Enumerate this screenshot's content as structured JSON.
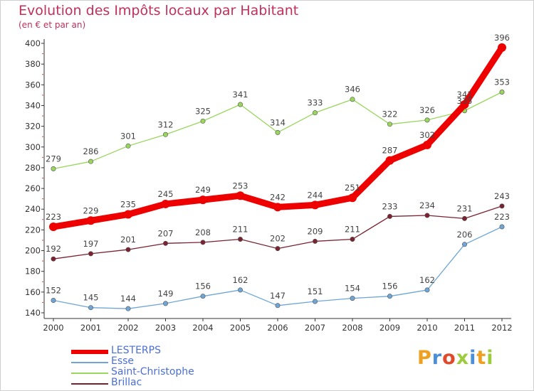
{
  "title": "Evolution des Impôts locaux par Habitant",
  "subtitle": "(en € et par an)",
  "logo": [
    "P",
    "r",
    "o",
    "x",
    "i",
    "t",
    "i"
  ],
  "chart_data": {
    "type": "line",
    "x": [
      "2000",
      "2001",
      "2002",
      "2003",
      "2004",
      "2005",
      "2006",
      "2007",
      "2008",
      "2009",
      "2010",
      "2011",
      "2012"
    ],
    "ylim": [
      140,
      400
    ],
    "yticks": [
      140,
      160,
      180,
      200,
      220,
      240,
      260,
      280,
      300,
      320,
      340,
      360,
      380,
      400
    ],
    "grid": false,
    "legend_position": "bottom-left",
    "series": [
      {
        "name": "LESTERPS",
        "color": "#ee0000",
        "values": [
          223,
          229,
          235,
          245,
          249,
          253,
          242,
          244,
          251,
          287,
          302,
          341,
          396
        ]
      },
      {
        "name": "Esse",
        "color": "#6fa6d6",
        "values": [
          152,
          145,
          144,
          149,
          156,
          162,
          147,
          151,
          154,
          156,
          162,
          206,
          223
        ]
      },
      {
        "name": "Saint-Christophe",
        "color": "#99d65c",
        "values": [
          279,
          286,
          301,
          312,
          325,
          341,
          314,
          333,
          346,
          322,
          326,
          335,
          353
        ]
      },
      {
        "name": "Brillac",
        "color": "#7a2230",
        "values": [
          192,
          197,
          201,
          207,
          208,
          211,
          202,
          209,
          211,
          233,
          234,
          231,
          243
        ]
      }
    ]
  }
}
